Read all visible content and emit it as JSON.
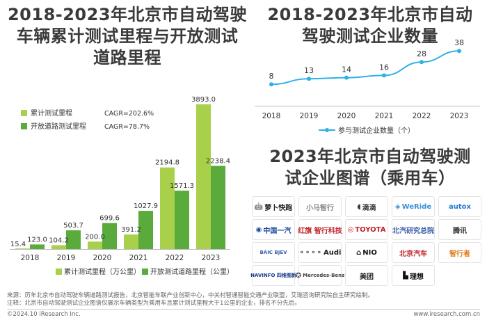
{
  "titles": {
    "left": [
      "2018-2023年北京市自动驾驶",
      "车辆累计测试里程与开放测试",
      "道路里程"
    ],
    "right": [
      "2018-2023年北京市自动",
      "驾驶测试企业数量"
    ],
    "brands": [
      "2023年北京市自动驾驶测",
      "试企业图谱（乘用车）"
    ]
  },
  "colors": {
    "cumulative": "#a8d04a",
    "open_road": "#5aab3c",
    "line": "#2eb0e6"
  },
  "chart_data": [
    {
      "type": "bar",
      "categories": [
        "2018",
        "2019",
        "2020",
        "2021",
        "2022",
        "2023"
      ],
      "series": [
        {
          "name": "累计测试里程（万公里）",
          "legend_name": "累计测试里程",
          "cagr": "CAGR=202.6%",
          "values": [
            15.4,
            104.2,
            200.0,
            391.2,
            2194.8,
            3893.0
          ],
          "labels": [
            "15.4",
            "104.2",
            "200.0",
            "391.2",
            "2194.8",
            "3893.0"
          ]
        },
        {
          "name": "开放测试道路里程（公里）",
          "legend_name": "开放道路测试里程",
          "cagr": "CAGR=78.7%",
          "values": [
            123.0,
            503.7,
            699.6,
            1027.9,
            1571.3,
            2238.4
          ],
          "labels": [
            "123.0",
            "503.7",
            "699.6",
            "1027.9",
            "1571.3",
            "2238.4"
          ]
        }
      ],
      "ylim": [
        0,
        3893.0
      ]
    },
    {
      "type": "line",
      "categories": [
        "2018",
        "2019",
        "2020",
        "2021",
        "2022",
        "2023"
      ],
      "series": [
        {
          "name": "参与测试企业数量（个）",
          "values": [
            8,
            13,
            14,
            16,
            28,
            38
          ],
          "labels": [
            "8",
            "13",
            "14",
            "16",
            "28",
            "38"
          ]
        }
      ],
      "ylim": [
        0,
        40
      ]
    }
  ],
  "brands": [
    {
      "name": "萝卜快跑",
      "icon": "robot-icon",
      "color": "#222222"
    },
    {
      "name": "小马智行",
      "icon": "",
      "color": "#888888"
    },
    {
      "name": "滴滴",
      "icon": "didi-icon",
      "color": "#333333"
    },
    {
      "name": "WeRide",
      "icon": "weride-icon",
      "color": "#3a8fd8"
    },
    {
      "name": "autox",
      "icon": "",
      "color": "#2277cc"
    },
    {
      "name": "中国一汽",
      "icon": "faw-icon",
      "color": "#1a4c9c"
    },
    {
      "name": "红旗 智行科技",
      "icon": "",
      "color": "#c0262c"
    },
    {
      "name": "TOYOTA",
      "icon": "toyota-icon",
      "color": "#c0262c"
    },
    {
      "name": "北汽研究总院",
      "icon": "",
      "color": "#3a5ea8"
    },
    {
      "name": "腾讯",
      "icon": "",
      "color": "#333333"
    },
    {
      "name": "BAIC BJEV",
      "icon": "",
      "color": "#3a5ea8"
    },
    {
      "name": "Audi",
      "icon": "audi-rings-icon",
      "color": "#222222"
    },
    {
      "name": "NIO",
      "icon": "nio-icon",
      "color": "#111111"
    },
    {
      "name": "北京汽车",
      "icon": "",
      "color": "#c0262c"
    },
    {
      "name": "智行者",
      "icon": "",
      "color": "#e07a1a"
    },
    {
      "name": "NAVINFO 四维图新",
      "icon": "",
      "color": "#1a3a8c"
    },
    {
      "name": "Mercedes-Benz",
      "icon": "mercedes-star-icon",
      "color": "#444444"
    },
    {
      "name": "美团",
      "icon": "",
      "color": "#222222"
    },
    {
      "name": "理想",
      "icon": "li-icon",
      "color": "#111111"
    }
  ],
  "footer": {
    "source": "来源：历年北京市自动驾驶车辆道路测试报告，北京智能车联产业创新中心，中关村智通智能交通产业联盟，艾瑞咨询研究院自主研究绘制。",
    "note": "注释：北京市自动驾驶测试企业图谱仅展示车辆类型为乘用车且累计测试里程大于1公里的企业，排名不分先后。",
    "copyright": "©2024.10 iResearch Inc.",
    "website": "www.iresearch.com.cn"
  }
}
